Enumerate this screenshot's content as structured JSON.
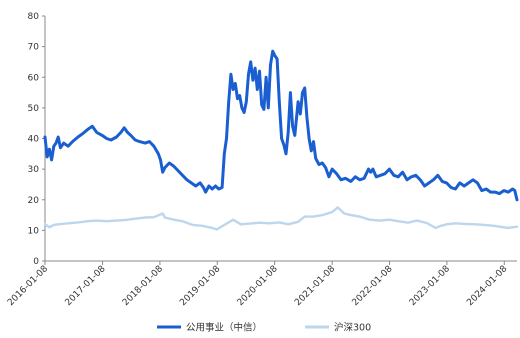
{
  "chart_data": {
    "type": "line",
    "title": "",
    "xlabel": "",
    "ylabel": "",
    "ylim": [
      0,
      80
    ],
    "y_ticks": [
      "0",
      "10",
      "20",
      "30",
      "40",
      "50",
      "60",
      "70",
      "80"
    ],
    "x_ticks": [
      "2016-01-08",
      "2017-01-08",
      "2018-01-08",
      "2019-01-08",
      "2020-01-08",
      "2021-01-08",
      "2022-01-08",
      "2023-01-08",
      "2024-01-08"
    ],
    "grid": false,
    "legend_position": "bottom",
    "series": [
      {
        "name": "公用事业（中信）",
        "color": "#1a5fd1",
        "points": [
          [
            "2016-01-08",
            40.5
          ],
          [
            "2016-01-22",
            34.0
          ],
          [
            "2016-02-05",
            36.5
          ],
          [
            "2016-02-19",
            33.0
          ],
          [
            "2016-03-04",
            37.5
          ],
          [
            "2016-03-18",
            38.5
          ],
          [
            "2016-04-01",
            40.5
          ],
          [
            "2016-04-15",
            37.0
          ],
          [
            "2016-05-06",
            38.5
          ],
          [
            "2016-06-03",
            37.5
          ],
          [
            "2016-07-01",
            39.0
          ],
          [
            "2016-08-05",
            40.5
          ],
          [
            "2016-09-02",
            41.5
          ],
          [
            "2016-10-07",
            43.0
          ],
          [
            "2016-11-04",
            44.0
          ],
          [
            "2016-12-02",
            42.0
          ],
          [
            "2017-01-06",
            41.0
          ],
          [
            "2017-02-03",
            40.0
          ],
          [
            "2017-03-03",
            39.5
          ],
          [
            "2017-04-07",
            40.5
          ],
          [
            "2017-05-05",
            42.0
          ],
          [
            "2017-05-26",
            43.5
          ],
          [
            "2017-06-16",
            42.0
          ],
          [
            "2017-07-07",
            41.0
          ],
          [
            "2017-08-04",
            39.5
          ],
          [
            "2017-09-01",
            39.0
          ],
          [
            "2017-10-06",
            38.5
          ],
          [
            "2017-11-03",
            39.0
          ],
          [
            "2017-12-01",
            37.5
          ],
          [
            "2017-12-29",
            35.0
          ],
          [
            "2018-01-12",
            33.0
          ],
          [
            "2018-01-26",
            29.0
          ],
          [
            "2018-02-09",
            30.5
          ],
          [
            "2018-03-09",
            32.0
          ],
          [
            "2018-04-06",
            31.0
          ],
          [
            "2018-05-04",
            29.5
          ],
          [
            "2018-06-01",
            28.0
          ],
          [
            "2018-06-29",
            26.5
          ],
          [
            "2018-07-27",
            25.5
          ],
          [
            "2018-08-24",
            24.5
          ],
          [
            "2018-09-21",
            25.5
          ],
          [
            "2018-10-12",
            24.0
          ],
          [
            "2018-10-26",
            22.5
          ],
          [
            "2018-11-16",
            24.5
          ],
          [
            "2018-12-07",
            23.5
          ],
          [
            "2018-12-28",
            24.5
          ],
          [
            "2019-01-18",
            23.5
          ],
          [
            "2019-02-08",
            24.0
          ],
          [
            "2019-02-22",
            35.0
          ],
          [
            "2019-03-08",
            40.0
          ],
          [
            "2019-03-22",
            52.0
          ],
          [
            "2019-04-05",
            61.0
          ],
          [
            "2019-04-19",
            56.0
          ],
          [
            "2019-05-03",
            58.0
          ],
          [
            "2019-05-17",
            53.0
          ],
          [
            "2019-05-31",
            54.0
          ],
          [
            "2019-06-14",
            50.0
          ],
          [
            "2019-06-28",
            48.5
          ],
          [
            "2019-07-12",
            52.0
          ],
          [
            "2019-07-26",
            61.0
          ],
          [
            "2019-08-09",
            65.0
          ],
          [
            "2019-08-23",
            59.0
          ],
          [
            "2019-09-06",
            63.0
          ],
          [
            "2019-09-20",
            56.0
          ],
          [
            "2019-10-04",
            62.0
          ],
          [
            "2019-10-18",
            51.0
          ],
          [
            "2019-11-01",
            49.5
          ],
          [
            "2019-11-15",
            60.0
          ],
          [
            "2019-11-29",
            50.0
          ],
          [
            "2019-12-13",
            64.0
          ],
          [
            "2019-12-27",
            68.5
          ],
          [
            "2020-01-10",
            67.0
          ],
          [
            "2020-01-24",
            66.0
          ],
          [
            "2020-02-07",
            52.0
          ],
          [
            "2020-02-21",
            40.0
          ],
          [
            "2020-03-06",
            38.0
          ],
          [
            "2020-03-20",
            35.0
          ],
          [
            "2020-04-03",
            42.0
          ],
          [
            "2020-04-17",
            55.0
          ],
          [
            "2020-05-01",
            44.0
          ],
          [
            "2020-05-15",
            41.0
          ],
          [
            "2020-06-05",
            52.0
          ],
          [
            "2020-06-19",
            48.0
          ],
          [
            "2020-07-03",
            55.0
          ],
          [
            "2020-07-17",
            56.5
          ],
          [
            "2020-07-31",
            47.0
          ],
          [
            "2020-08-14",
            40.0
          ],
          [
            "2020-08-28",
            36.0
          ],
          [
            "2020-09-11",
            39.0
          ],
          [
            "2020-09-25",
            33.5
          ],
          [
            "2020-10-16",
            31.5
          ],
          [
            "2020-11-06",
            32.0
          ],
          [
            "2020-11-27",
            30.5
          ],
          [
            "2020-12-18",
            27.5
          ],
          [
            "2021-01-08",
            30.0
          ],
          [
            "2021-02-05",
            28.5
          ],
          [
            "2021-03-05",
            26.5
          ],
          [
            "2021-04-02",
            27.0
          ],
          [
            "2021-05-07",
            26.0
          ],
          [
            "2021-06-04",
            27.5
          ],
          [
            "2021-07-02",
            26.5
          ],
          [
            "2021-07-30",
            27.0
          ],
          [
            "2021-08-27",
            30.0
          ],
          [
            "2021-09-10",
            29.0
          ],
          [
            "2021-09-24",
            30.0
          ],
          [
            "2021-10-15",
            27.5
          ],
          [
            "2021-11-12",
            28.0
          ],
          [
            "2021-12-10",
            28.5
          ],
          [
            "2022-01-07",
            30.0
          ],
          [
            "2022-02-04",
            28.0
          ],
          [
            "2022-03-04",
            27.5
          ],
          [
            "2022-04-01",
            29.0
          ],
          [
            "2022-04-29",
            26.5
          ],
          [
            "2022-05-27",
            27.5
          ],
          [
            "2022-06-24",
            28.0
          ],
          [
            "2022-07-22",
            26.5
          ],
          [
            "2022-08-19",
            24.5
          ],
          [
            "2022-09-16",
            25.5
          ],
          [
            "2022-10-14",
            26.5
          ],
          [
            "2022-11-11",
            28.0
          ],
          [
            "2022-12-09",
            26.0
          ],
          [
            "2023-01-06",
            25.5
          ],
          [
            "2023-02-03",
            24.0
          ],
          [
            "2023-03-03",
            23.5
          ],
          [
            "2023-03-31",
            25.5
          ],
          [
            "2023-04-28",
            24.5
          ],
          [
            "2023-05-26",
            25.5
          ],
          [
            "2023-06-23",
            26.5
          ],
          [
            "2023-07-21",
            25.5
          ],
          [
            "2023-08-18",
            23.0
          ],
          [
            "2023-09-15",
            23.5
          ],
          [
            "2023-10-13",
            22.5
          ],
          [
            "2023-11-10",
            22.5
          ],
          [
            "2023-12-08",
            22.0
          ],
          [
            "2024-01-05",
            23.0
          ],
          [
            "2024-02-02",
            22.5
          ],
          [
            "2024-03-01",
            23.5
          ],
          [
            "2024-03-15",
            23.0
          ],
          [
            "2024-03-29",
            20.0
          ]
        ]
      },
      {
        "name": "沪深300",
        "color": "#bcd6ee",
        "points": [
          [
            "2016-01-08",
            12.0
          ],
          [
            "2016-02-05",
            11.0
          ],
          [
            "2016-03-04",
            11.8
          ],
          [
            "2016-04-01",
            12.0
          ],
          [
            "2016-06-03",
            12.3
          ],
          [
            "2016-08-05",
            12.6
          ],
          [
            "2016-10-07",
            13.0
          ],
          [
            "2016-12-02",
            13.2
          ],
          [
            "2017-02-03",
            13.0
          ],
          [
            "2017-04-07",
            13.2
          ],
          [
            "2017-06-02",
            13.4
          ],
          [
            "2017-08-04",
            13.8
          ],
          [
            "2017-10-06",
            14.2
          ],
          [
            "2017-12-01",
            14.3
          ],
          [
            "2018-01-26",
            15.5
          ],
          [
            "2018-02-09",
            14.2
          ],
          [
            "2018-04-06",
            13.5
          ],
          [
            "2018-06-01",
            13.0
          ],
          [
            "2018-08-03",
            11.8
          ],
          [
            "2018-10-05",
            11.5
          ],
          [
            "2018-12-07",
            10.8
          ],
          [
            "2019-01-04",
            10.3
          ],
          [
            "2019-03-01",
            12.0
          ],
          [
            "2019-04-19",
            13.5
          ],
          [
            "2019-06-07",
            12.0
          ],
          [
            "2019-08-02",
            12.2
          ],
          [
            "2019-10-04",
            12.5
          ],
          [
            "2019-12-06",
            12.3
          ],
          [
            "2020-02-07",
            12.6
          ],
          [
            "2020-04-03",
            12.0
          ],
          [
            "2020-06-05",
            12.8
          ],
          [
            "2020-07-17",
            14.5
          ],
          [
            "2020-09-11",
            14.5
          ],
          [
            "2020-11-06",
            15.0
          ],
          [
            "2021-01-08",
            16.0
          ],
          [
            "2021-02-12",
            17.5
          ],
          [
            "2021-03-26",
            15.5
          ],
          [
            "2021-05-07",
            15.0
          ],
          [
            "2021-07-02",
            14.5
          ],
          [
            "2021-09-03",
            13.5
          ],
          [
            "2021-11-05",
            13.2
          ],
          [
            "2022-01-07",
            13.5
          ],
          [
            "2022-03-04",
            13.0
          ],
          [
            "2022-05-06",
            12.5
          ],
          [
            "2022-07-01",
            13.2
          ],
          [
            "2022-09-02",
            12.4
          ],
          [
            "2022-10-28",
            10.8
          ],
          [
            "2022-12-02",
            11.5
          ],
          [
            "2023-01-06",
            12.0
          ],
          [
            "2023-03-03",
            12.3
          ],
          [
            "2023-05-05",
            12.1
          ],
          [
            "2023-07-07",
            12.0
          ],
          [
            "2023-09-01",
            11.8
          ],
          [
            "2023-11-03",
            11.5
          ],
          [
            "2024-01-05",
            11.0
          ],
          [
            "2024-02-02",
            10.8
          ],
          [
            "2024-03-29",
            11.2
          ]
        ]
      }
    ]
  }
}
